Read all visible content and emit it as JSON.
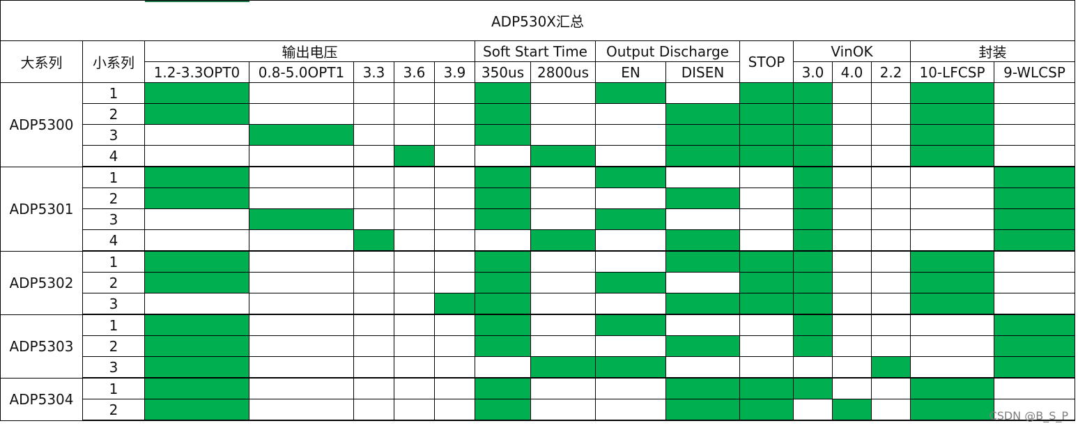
{
  "title": "ADP530X汇总",
  "watermark": "CSDN @B_S_P",
  "colors": {
    "active": "#00b050",
    "border": "#000000",
    "accent": "#1e7145"
  },
  "headers": {
    "series": "大系列",
    "subseries": "小系列",
    "groups": [
      {
        "label": "输出电压",
        "cols": [
          "1.2-3.3OPT0",
          "0.8-5.0OPT1",
          "3.3",
          "3.6",
          "3.9"
        ]
      },
      {
        "label": "Soft Start Time",
        "cols": [
          "350us",
          "2800us"
        ]
      },
      {
        "label": "Output Discharge",
        "cols": [
          "EN",
          "DISEN"
        ]
      },
      {
        "label": "STOP",
        "cols": []
      },
      {
        "label": "VinOK",
        "cols": [
          "3.0",
          "4.0",
          "2.2"
        ]
      },
      {
        "label": "封装",
        "cols": [
          "10-LFCSP",
          "9-WLCSP"
        ]
      }
    ]
  },
  "series": [
    {
      "name": "ADP5300",
      "rows": [
        {
          "sub": "1",
          "cells": [
            1,
            0,
            0,
            0,
            0,
            1,
            0,
            1,
            0,
            1,
            1,
            0,
            0,
            1,
            0
          ]
        },
        {
          "sub": "2",
          "cells": [
            1,
            0,
            0,
            0,
            0,
            1,
            0,
            0,
            1,
            1,
            1,
            0,
            0,
            1,
            0
          ]
        },
        {
          "sub": "3",
          "cells": [
            0,
            1,
            0,
            0,
            0,
            1,
            0,
            0,
            1,
            1,
            1,
            0,
            0,
            1,
            0
          ]
        },
        {
          "sub": "4",
          "cells": [
            0,
            0,
            0,
            1,
            0,
            0,
            1,
            0,
            1,
            1,
            1,
            0,
            0,
            1,
            0
          ]
        }
      ]
    },
    {
      "name": "ADP5301",
      "rows": [
        {
          "sub": "1",
          "cells": [
            1,
            0,
            0,
            0,
            0,
            1,
            0,
            1,
            0,
            0,
            1,
            0,
            0,
            0,
            1
          ]
        },
        {
          "sub": "2",
          "cells": [
            1,
            0,
            0,
            0,
            0,
            1,
            0,
            0,
            1,
            0,
            1,
            0,
            0,
            0,
            1
          ]
        },
        {
          "sub": "3",
          "cells": [
            0,
            1,
            0,
            0,
            0,
            1,
            0,
            1,
            0,
            0,
            1,
            0,
            0,
            0,
            1
          ]
        },
        {
          "sub": "4",
          "cells": [
            0,
            0,
            1,
            0,
            0,
            0,
            1,
            0,
            1,
            0,
            1,
            0,
            0,
            0,
            1
          ]
        }
      ]
    },
    {
      "name": "ADP5302",
      "rows": [
        {
          "sub": "1",
          "cells": [
            1,
            0,
            0,
            0,
            0,
            1,
            0,
            0,
            1,
            1,
            1,
            0,
            0,
            1,
            0
          ]
        },
        {
          "sub": "2",
          "cells": [
            1,
            0,
            0,
            0,
            0,
            1,
            0,
            1,
            0,
            1,
            1,
            0,
            0,
            1,
            0
          ]
        },
        {
          "sub": "3",
          "cells": [
            0,
            0,
            0,
            0,
            1,
            1,
            0,
            0,
            1,
            1,
            1,
            0,
            0,
            1,
            0
          ]
        }
      ]
    },
    {
      "name": "ADP5303",
      "rows": [
        {
          "sub": "1",
          "cells": [
            1,
            0,
            0,
            0,
            0,
            1,
            0,
            1,
            0,
            0,
            1,
            0,
            0,
            0,
            1
          ]
        },
        {
          "sub": "2",
          "cells": [
            1,
            0,
            0,
            0,
            0,
            1,
            0,
            0,
            1,
            0,
            1,
            0,
            0,
            0,
            1
          ]
        },
        {
          "sub": "3",
          "cells": [
            1,
            0,
            0,
            0,
            0,
            0,
            1,
            1,
            0,
            0,
            0,
            0,
            1,
            0,
            1
          ]
        }
      ]
    },
    {
      "name": "ADP5304",
      "rows": [
        {
          "sub": "1",
          "cells": [
            1,
            0,
            0,
            0,
            0,
            1,
            0,
            0,
            1,
            1,
            1,
            0,
            0,
            1,
            0
          ]
        },
        {
          "sub": "2",
          "cells": [
            1,
            0,
            0,
            0,
            0,
            1,
            0,
            0,
            1,
            1,
            0,
            1,
            0,
            1,
            0
          ]
        }
      ]
    }
  ]
}
